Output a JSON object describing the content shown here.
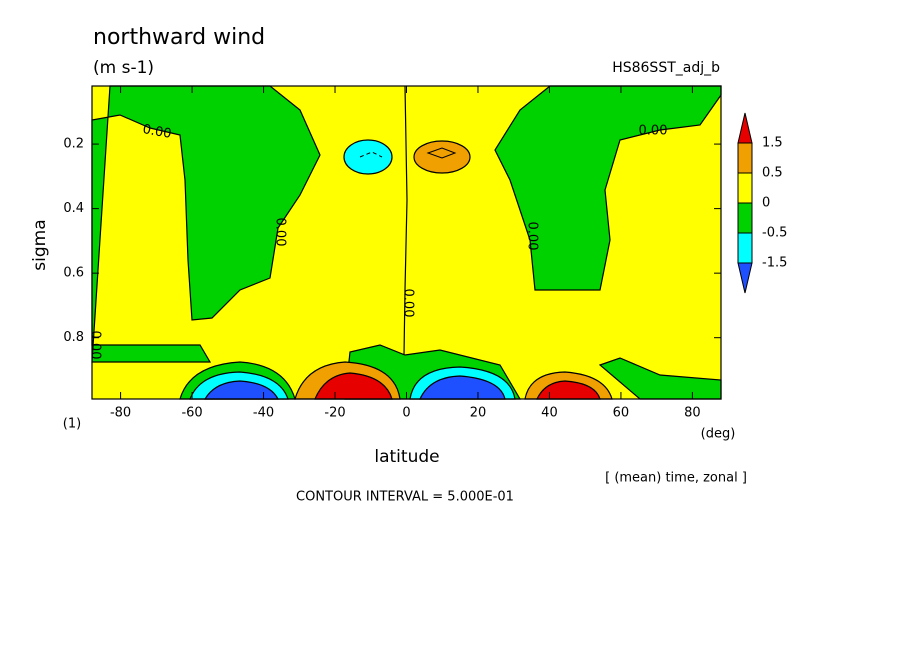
{
  "chart_data": {
    "type": "contour",
    "title": "northward wind",
    "subtitle": "(m s-1)",
    "experiment": "HS86SST_adj_b",
    "xlabel": "latitude",
    "xunit": "(deg)",
    "ylabel": "sigma",
    "panel_label": "(1)",
    "averaging": "[ (mean) time, zonal ]",
    "contour_interval": "CONTOUR INTERVAL = 5.000E-01",
    "xlim": [
      -88,
      88
    ],
    "xticks": [
      -80,
      -60,
      -40,
      -20,
      0,
      20,
      40,
      60,
      80
    ],
    "ylim": [
      0.02,
      0.99
    ],
    "yticks": [
      0.2,
      0.4,
      0.6,
      0.8
    ],
    "y_inverted": true,
    "colorbar": {
      "levels": [
        1.5,
        0.5,
        0,
        -0.5,
        -1.5
      ],
      "colors": [
        "#e60000",
        "#f0a000",
        "#ffff00",
        "#00d200",
        "#00ffff",
        "#1e50ff"
      ]
    },
    "contour_labels": [
      "0.00",
      "0.00",
      "0.00",
      "0.00",
      "0.00",
      "0.00",
      "0.00"
    ]
  }
}
